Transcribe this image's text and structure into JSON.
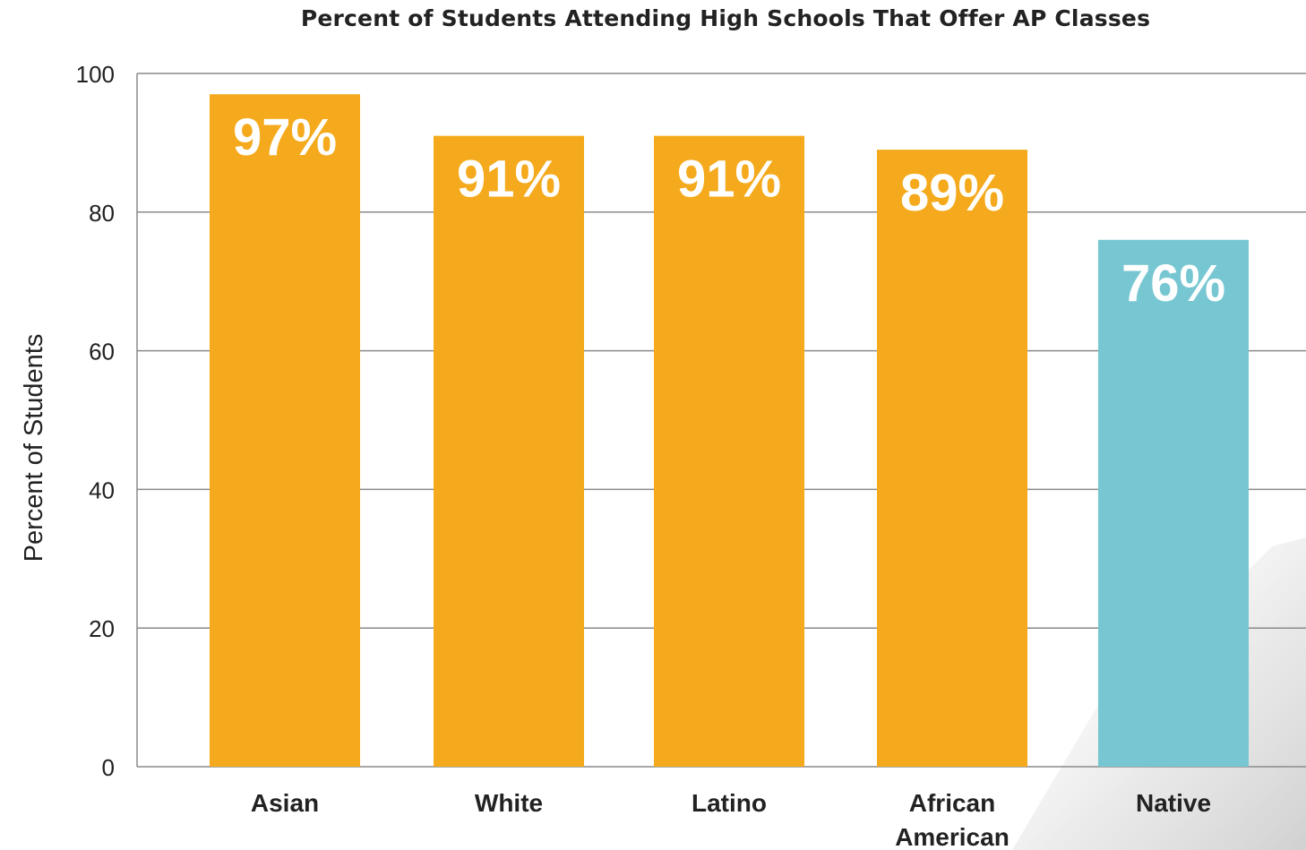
{
  "chart_data": {
    "type": "bar",
    "title": "Percent of Students Attending High Schools That Offer AP Classes",
    "xlabel": "",
    "ylabel": "Percent of Students",
    "ylim": [
      0,
      100
    ],
    "yticks": [
      0,
      20,
      40,
      60,
      80,
      100
    ],
    "grid": true,
    "categories": [
      [
        "Asian"
      ],
      [
        "White"
      ],
      [
        "Latino"
      ],
      [
        "African",
        "American"
      ],
      [
        "Native"
      ]
    ],
    "values": [
      97,
      91,
      91,
      89,
      76
    ],
    "data_labels": [
      "97%",
      "91%",
      "91%",
      "89%",
      "76%"
    ],
    "colors": {
      "default_bar": "#F4AA1C",
      "highlight_bar": "#77C7D2",
      "gridline": "#8a8a8a",
      "data_label": "#ffffff",
      "text": "#222222"
    },
    "highlight_index": 4
  }
}
